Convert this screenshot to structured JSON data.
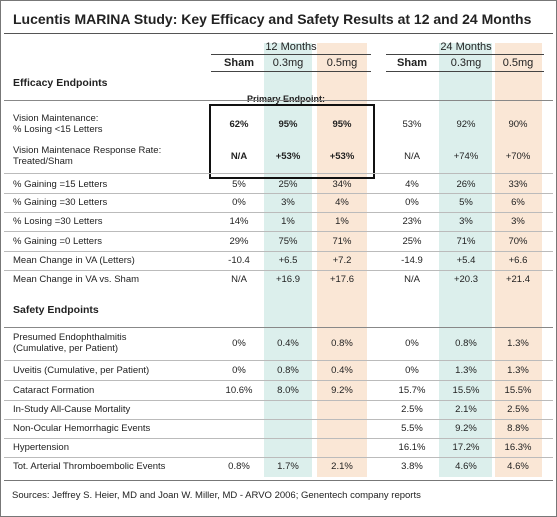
{
  "header": {
    "title": "Lucentis MARINA Study: Key Efficacy and Safety Results at 12 and 24 Months"
  },
  "table": {
    "groups": [
      "12 Months",
      "24 Months"
    ],
    "columns": [
      "Sham",
      "0.3mg",
      "0.5mg",
      "Sham",
      "0.3mg",
      "0.5mg"
    ],
    "primary_label": "Primary Endpoint:",
    "sections": [
      {
        "title": "Efficacy Endpoints",
        "rows": [
          {
            "label": [
              "Vision Maintenance:",
              "% Losing <15 Letters"
            ],
            "cells": [
              "62%",
              "95%",
              "95%",
              "53%",
              "92%",
              "90%"
            ]
          },
          {
            "label": [
              "Vision Maintenace Response Rate:",
              "Treated/Sham"
            ],
            "cells": [
              "N/A",
              "+53%",
              "+53%",
              "N/A",
              "+74%",
              "+70%"
            ]
          },
          {
            "label": [
              "% Gaining =15 Letters"
            ],
            "cells": [
              "5%",
              "25%",
              "34%",
              "4%",
              "26%",
              "33%"
            ]
          },
          {
            "label": [
              "% Gaining =30 Letters"
            ],
            "cells": [
              "0%",
              "3%",
              "4%",
              "0%",
              "5%",
              "6%"
            ]
          },
          {
            "label": [
              "% Losing =30 Letters"
            ],
            "cells": [
              "14%",
              "1%",
              "1%",
              "23%",
              "3%",
              "3%"
            ]
          },
          {
            "label": [
              "% Gaining =0 Letters"
            ],
            "cells": [
              "29%",
              "75%",
              "71%",
              "25%",
              "71%",
              "70%"
            ]
          },
          {
            "label": [
              "Mean Change in VA (Letters)"
            ],
            "cells": [
              "-10.4",
              "+6.5",
              "+7.2",
              "-14.9",
              "+5.4",
              "+6.6"
            ]
          },
          {
            "label": [
              "Mean Change in VA vs. Sham"
            ],
            "cells": [
              "N/A",
              "+16.9",
              "+17.6",
              "N/A",
              "+20.3",
              "+21.4"
            ]
          }
        ]
      },
      {
        "title": "Safety Endpoints",
        "rows": [
          {
            "label": [
              "Presumed Endophthalmitis",
              "(Cumulative, per Patient)"
            ],
            "cells": [
              "0%",
              "0.4%",
              "0.8%",
              "0%",
              "0.8%",
              "1.3%"
            ]
          },
          {
            "label": [
              "Uveitis (Cumulative, per Patient)"
            ],
            "cells": [
              "0%",
              "0.8%",
              "0.4%",
              "0%",
              "1.3%",
              "1.3%"
            ]
          },
          {
            "label": [
              "Cataract Formation"
            ],
            "cells": [
              "10.6%",
              "8.0%",
              "9.2%",
              "15.7%",
              "15.5%",
              "15.5%"
            ]
          },
          {
            "label": [
              "In-Study All-Cause Mortality"
            ],
            "cells": [
              null,
              null,
              null,
              "2.5%",
              "2.1%",
              "2.5%"
            ]
          },
          {
            "label": [
              "Non-Ocular Hemorrhagic Events"
            ],
            "cells": [
              null,
              null,
              null,
              "5.5%",
              "9.2%",
              "8.8%"
            ]
          },
          {
            "label": [
              "Hypertension"
            ],
            "cells": [
              null,
              null,
              null,
              "16.1%",
              "17.2%",
              "16.3%"
            ]
          },
          {
            "label": [
              "Tot. Arterial Thromboembolic Events"
            ],
            "cells": [
              "0.8%",
              "1.7%",
              "2.1%",
              "3.8%",
              "4.6%",
              "4.6%"
            ]
          }
        ]
      }
    ]
  },
  "footer": {
    "source": "Sources: Jeffrey S. Heier, MD and Joan W. Miller, MD - ARVO 2006; Genentech company reports"
  }
}
